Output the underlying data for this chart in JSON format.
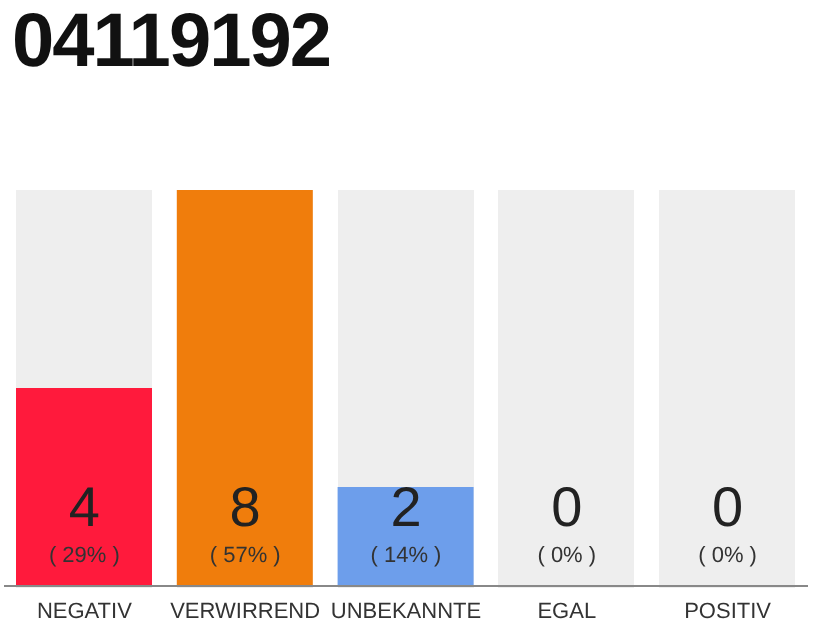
{
  "chart_data": {
    "type": "bar",
    "title": "04119192",
    "categories": [
      "NEGATIV",
      "VERWIRREND",
      "UNBEKANNTE",
      "EGAL",
      "POSITIV"
    ],
    "values": [
      4,
      8,
      2,
      0,
      0
    ],
    "colors": [
      "#ff1a3c",
      "#f07d0c",
      "#6d9eeb",
      "#c8c8c8",
      "#c8c8c8"
    ],
    "data_labels": true,
    "annotations": [
      {
        "text": "( 29% )",
        "x": "NEGATIV",
        "y": 0
      },
      {
        "text": "( 57% )",
        "x": "VERWIRREND",
        "y": 0
      },
      {
        "text": "( 14% )",
        "x": "UNBEKANNTE",
        "y": 0
      },
      {
        "text": "( 0% )",
        "x": "EGAL",
        "y": 0
      },
      {
        "text": "( 0% )",
        "x": "POSITIV",
        "y": 0
      }
    ],
    "grid": false,
    "legend": false
  }
}
